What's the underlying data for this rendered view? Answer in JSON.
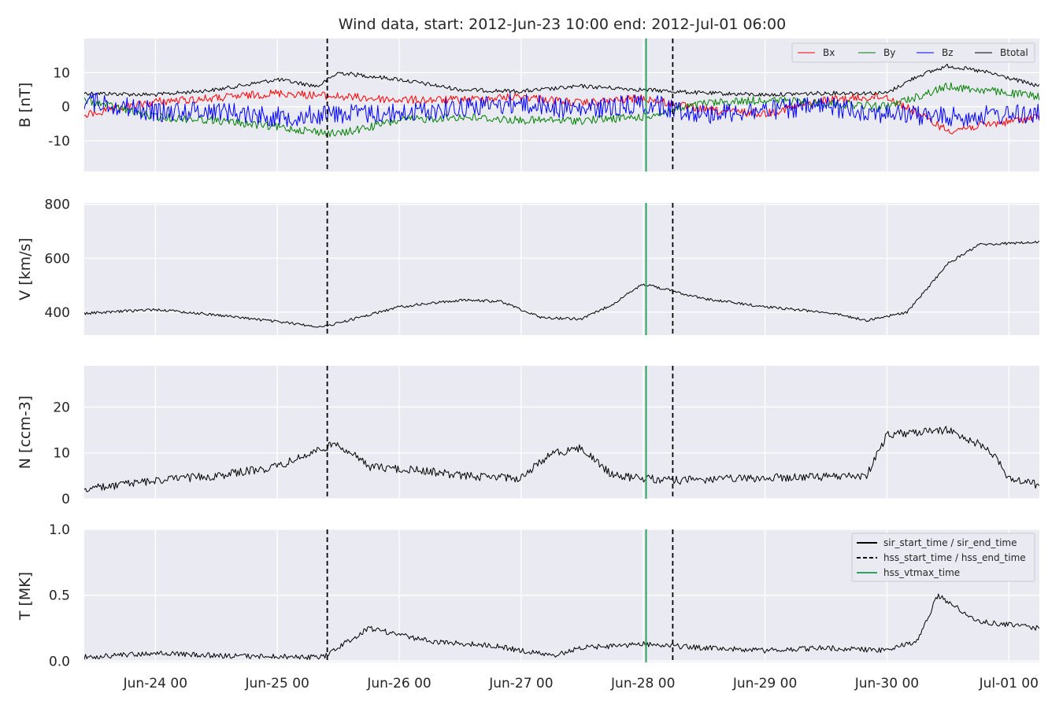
{
  "title": "Wind data, start: 2012-Jun-23 10:00  end: 2012-Jul-01 06:00",
  "colors": {
    "background": "#eaeaf2",
    "grid": "#ffffff",
    "Bx": "#ff0000",
    "By": "#008000",
    "Bz": "#0000ff",
    "Btotal": "#000000",
    "vtmax": "#2ca25f"
  },
  "chart_data": {
    "type": "line",
    "x_range": [
      "2012-06-23T10:00",
      "2012-07-01T06:00"
    ],
    "x_tick_labels": [
      {
        "label": "Jun-24 00",
        "time": "2012-06-24T00:00"
      },
      {
        "label": "Jun-25 00",
        "time": "2012-06-25T00:00"
      },
      {
        "label": "Jun-26 00",
        "time": "2012-06-26T00:00"
      },
      {
        "label": "Jun-27 00",
        "time": "2012-06-27T00:00"
      },
      {
        "label": "Jun-28 00",
        "time": "2012-06-28T00:00"
      },
      {
        "label": "Jun-29 00",
        "time": "2012-06-29T00:00"
      },
      {
        "label": "Jun-30 00",
        "time": "2012-06-30T00:00"
      },
      {
        "label": "Jul-01 00",
        "time": "2012-07-01T00:00"
      }
    ],
    "vertical_markers": [
      {
        "time": "2012-06-25T09:50",
        "style": "dashed",
        "color": "#000000",
        "kind": "hss_start"
      },
      {
        "time": "2012-06-28T00:35",
        "style": "solid",
        "color": "#2ca25f",
        "kind": "hss_vtmax"
      },
      {
        "time": "2012-06-28T05:50",
        "style": "dashed",
        "color": "#000000",
        "kind": "hss_end"
      }
    ],
    "panels": [
      {
        "id": "B",
        "ylabel": "B [nT]",
        "ylim": [
          -19,
          20
        ],
        "yticks": [
          10,
          0,
          -10
        ],
        "legend": {
          "position": "top-right",
          "entries": [
            "Bx",
            "By",
            "Bz",
            "Btotal"
          ]
        },
        "series": [
          {
            "name": "Btotal",
            "color": "#000000",
            "noise": 0.6,
            "points": [
              [
                "2012-06-23T10:00",
                4
              ],
              [
                "2012-06-24T00:00",
                3.5
              ],
              [
                "2012-06-24T12:00",
                5
              ],
              [
                "2012-06-25T00:00",
                8
              ],
              [
                "2012-06-25T08:00",
                6
              ],
              [
                "2012-06-25T12:00",
                10
              ],
              [
                "2012-06-26T00:00",
                8
              ],
              [
                "2012-06-26T12:00",
                5
              ],
              [
                "2012-06-27T00:00",
                4.5
              ],
              [
                "2012-06-27T12:00",
                6
              ],
              [
                "2012-06-28T00:00",
                5
              ],
              [
                "2012-06-28T12:00",
                4
              ],
              [
                "2012-06-29T00:00",
                3.5
              ],
              [
                "2012-06-29T12:00",
                4
              ],
              [
                "2012-06-30T00:00",
                4
              ],
              [
                "2012-06-30T06:00",
                9
              ],
              [
                "2012-06-30T12:00",
                12
              ],
              [
                "2012-06-30T20:00",
                10
              ],
              [
                "2012-07-01T06:00",
                6
              ]
            ]
          },
          {
            "name": "Bx",
            "color": "#ff0000",
            "noise": 1.2,
            "points": [
              [
                "2012-06-23T10:00",
                -2.5
              ],
              [
                "2012-06-24T00:00",
                1.5
              ],
              [
                "2012-06-24T12:00",
                2.5
              ],
              [
                "2012-06-25T00:00",
                4
              ],
              [
                "2012-06-25T12:00",
                3
              ],
              [
                "2012-06-26T00:00",
                2
              ],
              [
                "2012-06-26T12:00",
                2
              ],
              [
                "2012-06-27T00:00",
                3
              ],
              [
                "2012-06-27T12:00",
                1
              ],
              [
                "2012-06-28T00:00",
                2.5
              ],
              [
                "2012-06-28T12:00",
                -1
              ],
              [
                "2012-06-29T00:00",
                -2
              ],
              [
                "2012-06-29T12:00",
                2
              ],
              [
                "2012-06-30T00:00",
                3
              ],
              [
                "2012-06-30T12:00",
                -7
              ],
              [
                "2012-07-01T06:00",
                -3
              ]
            ]
          },
          {
            "name": "By",
            "color": "#008000",
            "noise": 1.2,
            "points": [
              [
                "2012-06-23T10:00",
                2
              ],
              [
                "2012-06-24T00:00",
                -3
              ],
              [
                "2012-06-24T12:00",
                -4
              ],
              [
                "2012-06-25T00:00",
                -6
              ],
              [
                "2012-06-25T12:00",
                -8
              ],
              [
                "2012-06-26T00:00",
                -4
              ],
              [
                "2012-06-26T12:00",
                -3
              ],
              [
                "2012-06-27T00:00",
                -4
              ],
              [
                "2012-06-27T12:00",
                -4
              ],
              [
                "2012-06-28T00:00",
                -3
              ],
              [
                "2012-06-28T12:00",
                1
              ],
              [
                "2012-06-29T00:00",
                2
              ],
              [
                "2012-06-29T12:00",
                1
              ],
              [
                "2012-06-30T00:00",
                0
              ],
              [
                "2012-06-30T12:00",
                6
              ],
              [
                "2012-07-01T06:00",
                3
              ]
            ]
          },
          {
            "name": "Bz",
            "color": "#0000ff",
            "noise": 3,
            "points": [
              [
                "2012-06-23T10:00",
                2
              ],
              [
                "2012-06-24T00:00",
                -1.5
              ],
              [
                "2012-06-24T12:00",
                -1
              ],
              [
                "2012-06-25T00:00",
                -3
              ],
              [
                "2012-06-25T12:00",
                -2
              ],
              [
                "2012-06-26T00:00",
                -2
              ],
              [
                "2012-06-26T12:00",
                0
              ],
              [
                "2012-06-27T00:00",
                1
              ],
              [
                "2012-06-27T12:00",
                -1
              ],
              [
                "2012-06-28T00:00",
                1
              ],
              [
                "2012-06-28T12:00",
                -2
              ],
              [
                "2012-06-29T00:00",
                -1
              ],
              [
                "2012-06-29T12:00",
                0
              ],
              [
                "2012-06-30T00:00",
                -2
              ],
              [
                "2012-06-30T12:00",
                -3
              ],
              [
                "2012-07-01T06:00",
                -2
              ]
            ]
          }
        ]
      },
      {
        "id": "V",
        "ylabel": "V [km/s]",
        "ylim": [
          315,
          805
        ],
        "yticks": [
          800,
          600,
          400
        ],
        "series": [
          {
            "name": "V",
            "color": "#000000",
            "noise": 5,
            "points": [
              [
                "2012-06-23T10:00",
                395
              ],
              [
                "2012-06-24T00:00",
                410
              ],
              [
                "2012-06-24T12:00",
                390
              ],
              [
                "2012-06-25T00:00",
                365
              ],
              [
                "2012-06-25T09:00",
                345
              ],
              [
                "2012-06-25T12:00",
                360
              ],
              [
                "2012-06-26T00:00",
                420
              ],
              [
                "2012-06-26T12:00",
                445
              ],
              [
                "2012-06-26T20:00",
                440
              ],
              [
                "2012-06-27T04:00",
                380
              ],
              [
                "2012-06-27T12:00",
                375
              ],
              [
                "2012-06-27T18:00",
                430
              ],
              [
                "2012-06-28T00:00",
                505
              ],
              [
                "2012-06-28T12:00",
                450
              ],
              [
                "2012-06-29T00:00",
                420
              ],
              [
                "2012-06-29T12:00",
                400
              ],
              [
                "2012-06-29T20:00",
                370
              ],
              [
                "2012-06-30T04:00",
                400
              ],
              [
                "2012-06-30T12:00",
                580
              ],
              [
                "2012-06-30T18:00",
                650
              ],
              [
                "2012-07-01T06:00",
                660
              ]
            ]
          }
        ]
      },
      {
        "id": "N",
        "ylabel": "N [ccm-3]",
        "ylim": [
          0,
          29
        ],
        "yticks": [
          20,
          10,
          0
        ],
        "series": [
          {
            "name": "N",
            "color": "#000000",
            "noise": 0.9,
            "points": [
              [
                "2012-06-23T10:00",
                2
              ],
              [
                "2012-06-24T00:00",
                4
              ],
              [
                "2012-06-24T12:00",
                5
              ],
              [
                "2012-06-25T00:00",
                7
              ],
              [
                "2012-06-25T09:00",
                11
              ],
              [
                "2012-06-25T12:00",
                12
              ],
              [
                "2012-06-25T18:00",
                7
              ],
              [
                "2012-06-26T06:00",
                6
              ],
              [
                "2012-06-26T12:00",
                5
              ],
              [
                "2012-06-27T00:00",
                4.5
              ],
              [
                "2012-06-27T06:00",
                10
              ],
              [
                "2012-06-27T12:00",
                11
              ],
              [
                "2012-06-27T18:00",
                5
              ],
              [
                "2012-06-28T06:00",
                4
              ],
              [
                "2012-06-29T00:00",
                4.5
              ],
              [
                "2012-06-29T20:00",
                5
              ],
              [
                "2012-06-30T00:00",
                14
              ],
              [
                "2012-06-30T12:00",
                15
              ],
              [
                "2012-06-30T20:00",
                11
              ],
              [
                "2012-07-01T00:00",
                4.5
              ],
              [
                "2012-07-01T06:00",
                3
              ]
            ]
          }
        ]
      },
      {
        "id": "T",
        "ylabel": "T [MK]",
        "ylim": [
          -0.01,
          1.0
        ],
        "yticks": [
          1.0,
          0.5,
          0.0
        ],
        "legend": {
          "position": "top-right",
          "entries": [
            "sir_start_time / sir_end_time",
            "hss_start_time / hss_end_time",
            "hss_vtmax_time"
          ]
        },
        "series": [
          {
            "name": "T",
            "color": "#000000",
            "noise": 0.02,
            "points": [
              [
                "2012-06-23T10:00",
                0.03
              ],
              [
                "2012-06-24T00:00",
                0.06
              ],
              [
                "2012-06-24T12:00",
                0.04
              ],
              [
                "2012-06-25T09:00",
                0.03
              ],
              [
                "2012-06-25T18:00",
                0.25
              ],
              [
                "2012-06-26T06:00",
                0.15
              ],
              [
                "2012-06-26T18:00",
                0.12
              ],
              [
                "2012-06-27T06:00",
                0.04
              ],
              [
                "2012-06-27T12:00",
                0.1
              ],
              [
                "2012-06-28T00:00",
                0.13
              ],
              [
                "2012-06-28T12:00",
                0.1
              ],
              [
                "2012-06-29T00:00",
                0.08
              ],
              [
                "2012-06-29T12:00",
                0.1
              ],
              [
                "2012-06-29T23:00",
                0.08
              ],
              [
                "2012-06-30T06:00",
                0.15
              ],
              [
                "2012-06-30T10:00",
                0.5
              ],
              [
                "2012-06-30T18:00",
                0.3
              ],
              [
                "2012-07-01T06:00",
                0.25
              ]
            ]
          }
        ]
      }
    ]
  }
}
